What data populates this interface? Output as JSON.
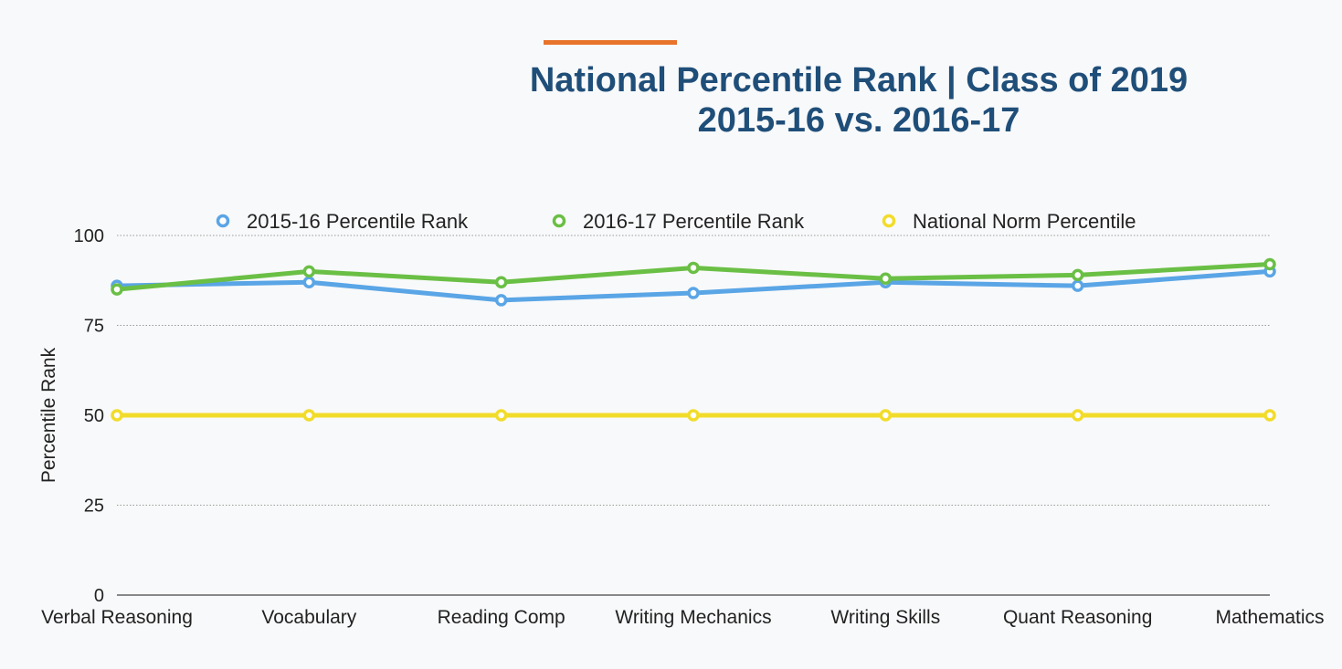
{
  "colors": {
    "accent_bar": "#e8732a",
    "title": "#1f4e79",
    "series_2015": "#5aa5e6",
    "series_2016": "#6abf45",
    "series_norm": "#f2dc2a",
    "grid": "#9a9a9a",
    "axis": "#444444",
    "background": "#f8f9fa"
  },
  "chart_data": {
    "type": "line",
    "title": "National Percentile Rank | Class of 2019",
    "subtitle": "2015-16 vs. 2016-17",
    "xlabel": "",
    "ylabel": "Percentile Rank",
    "ylim": [
      0,
      100
    ],
    "yticks": [
      0,
      25,
      50,
      75,
      100
    ],
    "ytick_labels": [
      "0",
      "25",
      "50",
      "75",
      "100"
    ],
    "grid": true,
    "legend_position": "top",
    "categories": [
      "Verbal Reasoning",
      "Vocabulary",
      "Reading Comp",
      "Writing Mechanics",
      "Writing Skills",
      "Quant Reasoning",
      "Mathematics"
    ],
    "series": [
      {
        "name": "2015-16 Percentile Rank",
        "color_key": "series_2015",
        "values": [
          86,
          87,
          82,
          84,
          87,
          86,
          90
        ]
      },
      {
        "name": "2016-17 Percentile Rank",
        "color_key": "series_2016",
        "values": [
          85,
          90,
          87,
          91,
          88,
          89,
          92
        ]
      },
      {
        "name": "National Norm Percentile",
        "color_key": "series_norm",
        "values": [
          50,
          50,
          50,
          50,
          50,
          50,
          50
        ]
      }
    ]
  }
}
